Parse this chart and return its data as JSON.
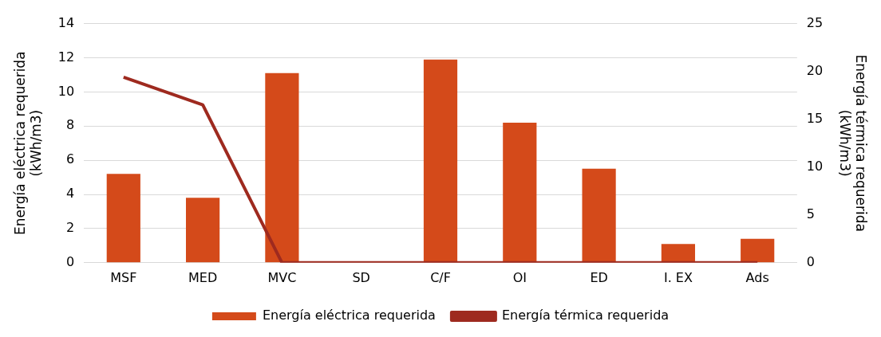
{
  "chart_data": {
    "type": "bar",
    "categories": [
      "MSF",
      "MED",
      "MVC",
      "SD",
      "C/F",
      "OI",
      "ED",
      "I. EX",
      "Ads"
    ],
    "ylabel": "Energía eléctrica requerida\n(kWh/m3)",
    "y2label": "Energía térmica requerida\n(kWh/m3)",
    "series": [
      {
        "name": "Energía eléctrica requerida",
        "color": "#d44a1a",
        "values": [
          5.2,
          3.8,
          11.1,
          0,
          11.9,
          8.2,
          5.5,
          1.1,
          1.4
        ]
      },
      {
        "name": "Energía térmica requerida",
        "type": "line",
        "axis": "y2",
        "color": "#9e2a1f",
        "values": [
          19.4,
          16.5,
          0,
          0,
          0,
          0,
          0,
          0,
          0
        ]
      }
    ],
    "ylim": [
      0,
      14
    ],
    "yticks": [
      0,
      2,
      4,
      6,
      8,
      10,
      12,
      14
    ],
    "y2lim": [
      0,
      25
    ],
    "y2ticks": [
      0,
      5,
      10,
      15,
      20,
      25
    ],
    "grid": "y",
    "legend": "bottom",
    "marker": "none",
    "line_style": "solid"
  }
}
